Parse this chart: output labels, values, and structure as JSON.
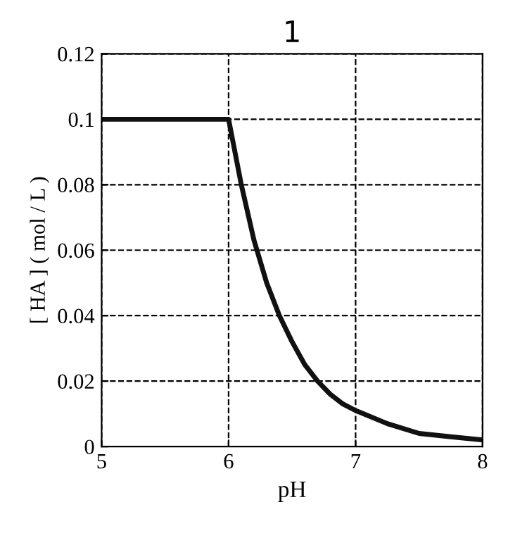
{
  "chart_data": {
    "type": "line",
    "title": "1",
    "xlabel": "pH",
    "ylabel": "[ HA ] ( mol / L )",
    "x": [
      5,
      6,
      6.1,
      6.2,
      6.3,
      6.4,
      6.5,
      6.6,
      6.7,
      6.8,
      6.9,
      7,
      7.25,
      7.5,
      7.75,
      8
    ],
    "series": [
      {
        "color": "#111111",
        "values": [
          0.1,
          0.1,
          0.08,
          0.063,
          0.05,
          0.04,
          0.032,
          0.025,
          0.02,
          0.016,
          0.013,
          0.011,
          0.007,
          0.004,
          0.003,
          0.002
        ]
      }
    ],
    "xlim": [
      5,
      8
    ],
    "ylim": [
      0,
      0.12
    ],
    "xticks": [
      5,
      6,
      7,
      8
    ],
    "yticks": [
      0,
      0.02,
      0.04,
      0.06,
      0.08,
      0.1,
      0.12
    ],
    "grid": true,
    "line_style": "solid",
    "marker": "none"
  }
}
